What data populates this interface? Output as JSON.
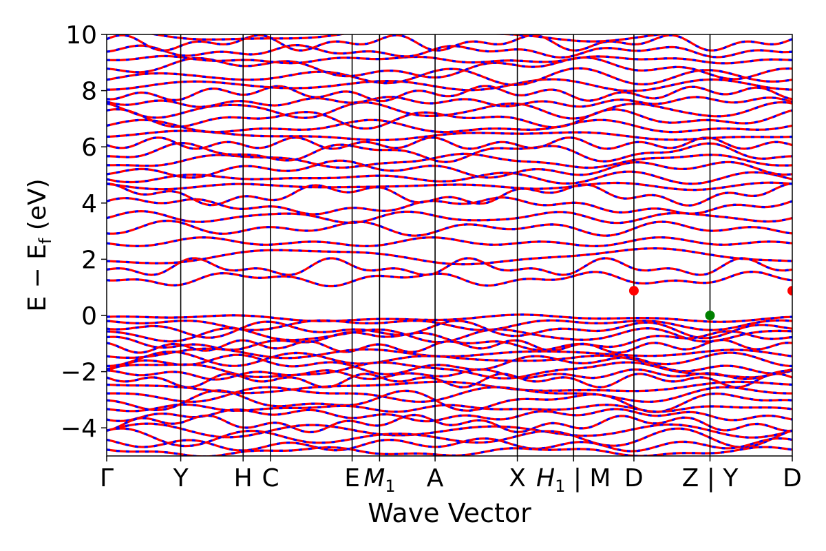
{
  "chart_data": {
    "type": "line",
    "title": "",
    "xlabel": "Wave Vector",
    "ylabel_parts": {
      "main": "E − E",
      "sub": "f",
      "unit": " (eV)"
    },
    "ylim": [
      -5,
      10
    ],
    "yticks": [
      {
        "value": -4,
        "label": "−4"
      },
      {
        "value": -2,
        "label": "−2"
      },
      {
        "value": 0,
        "label": "0"
      },
      {
        "value": 2,
        "label": "2"
      },
      {
        "value": 4,
        "label": "4"
      },
      {
        "value": 6,
        "label": "6"
      },
      {
        "value": 8,
        "label": "8"
      },
      {
        "value": 10,
        "label": "10"
      }
    ],
    "xlim": [
      0,
      1
    ],
    "kpoints": [
      {
        "label": "Γ",
        "x": 0.0
      },
      {
        "label": "Y",
        "x": 0.108
      },
      {
        "label": "H",
        "x": 0.199
      },
      {
        "label": "C",
        "x": 0.239
      },
      {
        "label": "E",
        "x": 0.358
      },
      {
        "label": "M",
        "sub": "1",
        "x": 0.398
      },
      {
        "label": "A",
        "x": 0.479
      },
      {
        "label": "X",
        "x": 0.599
      },
      {
        "label": "H",
        "sub": "1",
        "x": 0.681,
        "suffix": " | M"
      },
      {
        "label": "D",
        "x": 0.769
      },
      {
        "label": "Z",
        "x": 0.88,
        "suffix": " | Y"
      },
      {
        "label": "D",
        "x": 1.0
      }
    ],
    "grid": false,
    "series": [
      {
        "spin": "up",
        "color": "#ff0000",
        "style": "solid"
      },
      {
        "spin": "down",
        "color": "#0000ff",
        "style": "dashed"
      }
    ],
    "bands": {
      "valence_anchors": [
        -0.1,
        -0.3,
        -0.5,
        -0.7,
        -0.9,
        -1.1,
        -1.35,
        -1.55,
        -1.75,
        -1.95,
        -2.1,
        -2.3,
        -2.55,
        -2.8,
        -3.05,
        -3.3,
        -3.55,
        -3.85,
        -4.1,
        -4.35,
        -4.6,
        -4.85
      ],
      "conduction_anchors": [
        1.3,
        1.7,
        2.1,
        2.6,
        3.1,
        3.5,
        3.9,
        4.3,
        4.6,
        4.9,
        5.2,
        5.5,
        5.8,
        6.1,
        6.4,
        6.7,
        7.0,
        7.3,
        7.6,
        7.9,
        8.2,
        8.5,
        8.8,
        9.1,
        9.4,
        9.7,
        10.0
      ]
    },
    "annotations": [
      {
        "type": "cbm",
        "color": "#ff0000",
        "x": 0.769,
        "y": 0.88
      },
      {
        "type": "cbm",
        "color": "#ff0000",
        "x": 1.0,
        "y": 0.88
      },
      {
        "type": "vbm",
        "color": "#008000",
        "x": 0.88,
        "y": 0.0
      }
    ]
  }
}
